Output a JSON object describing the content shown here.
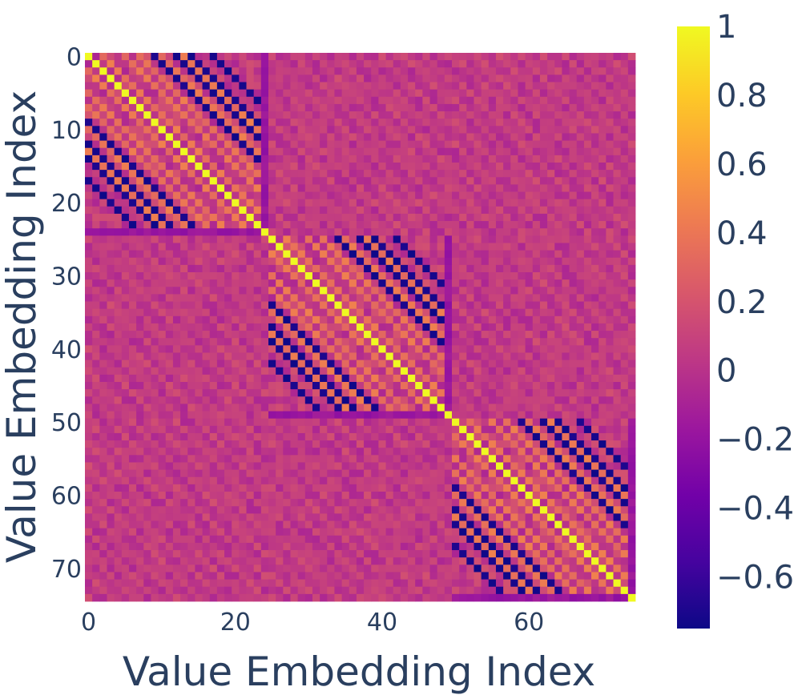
{
  "chart_data": {
    "type": "heatmap",
    "title": "",
    "xlabel": "Value Embedding Index",
    "ylabel": "Value Embedding Index",
    "size": 75,
    "block_size": 25,
    "x_range": [
      0,
      74
    ],
    "y_range": [
      0,
      74
    ],
    "y_reversed": true,
    "x_ticks": [
      0,
      20,
      40,
      60
    ],
    "y_ticks": [
      0,
      10,
      20,
      30,
      40,
      50,
      60,
      70
    ],
    "zmin": -0.75,
    "zmax": 1,
    "colorscale": "plasma",
    "colorscale_stops": [
      "#0d0887",
      "#46039f",
      "#7201a8",
      "#9c179e",
      "#bd3786",
      "#d8576b",
      "#ed7953",
      "#fb9f3a",
      "#fdca26",
      "#f0f921"
    ],
    "colorbar_ticks": [
      {
        "value": 1,
        "label": "1"
      },
      {
        "value": 0.8,
        "label": "0.8"
      },
      {
        "value": 0.6,
        "label": "0.6"
      },
      {
        "value": 0.4,
        "label": "0.4"
      },
      {
        "value": 0.2,
        "label": "0.2"
      },
      {
        "value": 0,
        "label": "0"
      },
      {
        "value": -0.2,
        "label": "−0.2"
      },
      {
        "value": -0.4,
        "label": "−0.4"
      },
      {
        "value": -0.6,
        "label": "−0.6"
      }
    ],
    "structure": {
      "diagonal_value": 1.0,
      "within_block_strong_negative_offsets": [
        9,
        12,
        14,
        17
      ],
      "within_block_strong_negative_value": -0.72,
      "within_block_positive_offsets": [
        2,
        5,
        7,
        10,
        13
      ],
      "within_block_positive_value": 0.38,
      "within_block_background": 0.06,
      "between_block_background": 0.02,
      "between_block_stripe_offsets": [
        0,
        3,
        6
      ],
      "between_block_stripe_value": 0.12,
      "separator_index_in_block": 24,
      "separator_value": -0.18
    }
  }
}
